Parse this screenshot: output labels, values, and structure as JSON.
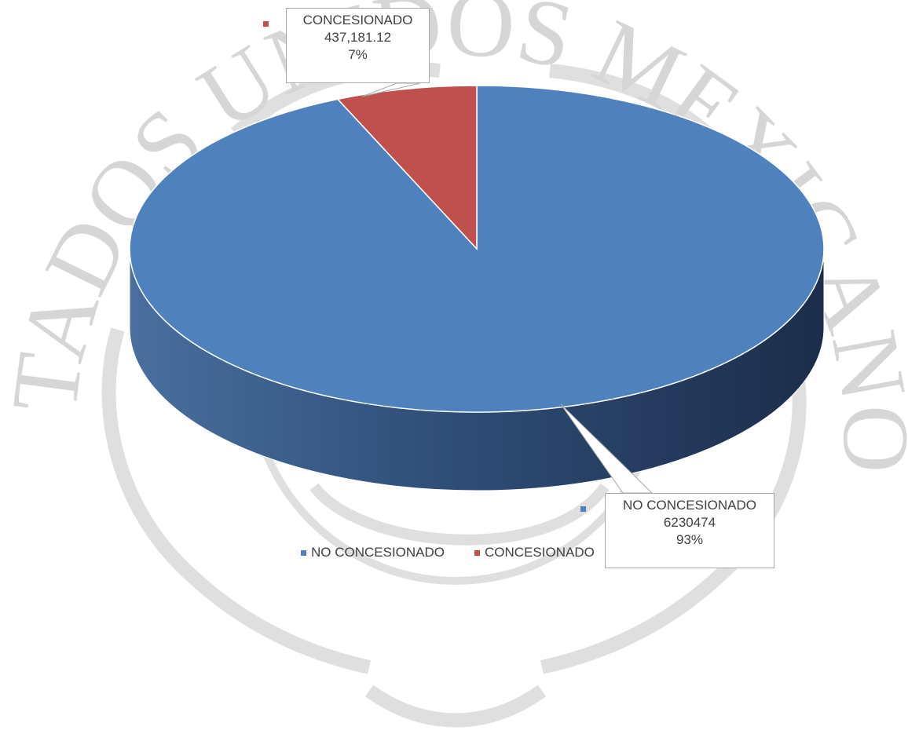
{
  "watermark": {
    "text": "ESTADOS UNIDOS MEXICANOS",
    "color": "#d6d6d6"
  },
  "chart_data": {
    "type": "pie",
    "title": "",
    "categories": [
      "NO CONCESIONADO",
      "CONCESIONADO"
    ],
    "values": [
      6230474,
      437181.12
    ],
    "percentages": [
      "93%",
      "7%"
    ],
    "value_labels": [
      "6230474",
      "437,181.12"
    ],
    "colors": [
      "#4f81bd",
      "#c0504d"
    ],
    "legend_position": "bottom",
    "three_d": true
  },
  "labels": {
    "concesionado": {
      "name": "CONCESIONADO",
      "value": "437,181.12",
      "pct": "7%"
    },
    "no_concesionado": {
      "name": "NO CONCESIONADO",
      "value": "6230474",
      "pct": "93%"
    }
  },
  "legend": {
    "items": [
      {
        "label": "NO CONCESIONADO",
        "color": "#4f81bd"
      },
      {
        "label": "CONCESIONADO",
        "color": "#c0504d"
      }
    ]
  }
}
